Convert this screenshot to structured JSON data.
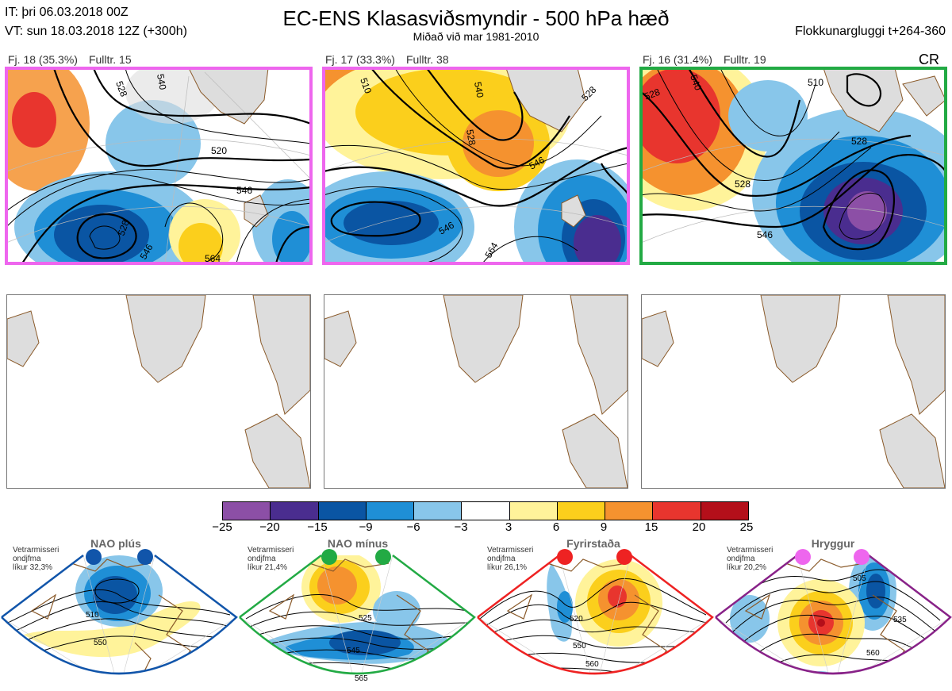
{
  "header": {
    "init_time": "IT: þri 06.03.2018 00Z",
    "valid_time": "VT: sun 18.03.2018 12Z  (+300h)",
    "title": "EC-ENS Klasasviðsmyndir - 500 hPa hæð",
    "subtitle": "Miðað við mar 1981-2010",
    "window": "Flokkunargluggi t+264-360"
  },
  "colors": {
    "magenta_frame": "#ee66ee",
    "green_frame": "#22aa44",
    "blue_frame": "#1155aa",
    "red_frame": "#ee2222",
    "purple_frame": "#882288",
    "land": "#dddddd",
    "coast": "#8a5a2a"
  },
  "panels": [
    {
      "count": "Fj. 18 (35.3%)",
      "rep": "Fulltr. 15",
      "frame_color": "#ee66ee",
      "contour_labels": [
        "528",
        "540",
        "520",
        "546",
        "528",
        "546",
        "564"
      ]
    },
    {
      "count": "Fj. 17 (33.3%)",
      "rep": "Fulltr. 38",
      "frame_color": "#ee66ee",
      "contour_labels": [
        "540",
        "510",
        "528",
        "528",
        "546",
        "546",
        "564"
      ]
    },
    {
      "count": "Fj. 16 (31.4%)",
      "rep": "Fulltr. 19",
      "frame_color": "#22aa44",
      "extra": "CR",
      "contour_labels": [
        "528",
        "540",
        "510",
        "528",
        "528",
        "546"
      ]
    }
  ],
  "colorbar": {
    "ticks": [
      "−25",
      "−20",
      "−15",
      "−9",
      "−6",
      "−3",
      "3",
      "6",
      "9",
      "15",
      "20",
      "25"
    ],
    "colors": [
      "#8c4fa6",
      "#4a2d8f",
      "#0a55a3",
      "#1f8fd6",
      "#88c6ea",
      "#ffffff",
      "#fff39a",
      "#fbcf1c",
      "#f5922f",
      "#e8352e",
      "#b40f1a"
    ]
  },
  "regimes": [
    {
      "name": "NAO plús",
      "note": [
        "Vetrarmisseri",
        "ondjfma",
        "líkur 32,3%"
      ],
      "color": "#1155aa",
      "labels": [
        "510",
        "550"
      ]
    },
    {
      "name": "NAO mínus",
      "note": [
        "Vetrarmisseri",
        "ondjfma",
        "líkur 21,4%"
      ],
      "color": "#22aa44",
      "labels": [
        "525",
        "545",
        "565"
      ]
    },
    {
      "name": "Fyrirstaða",
      "note": [
        "Vetrarmisseri",
        "ondjfma",
        "líkur 26,1%"
      ],
      "color": "#ee2222",
      "labels": [
        "520",
        "550",
        "560"
      ]
    },
    {
      "name": "Hryggur",
      "note": [
        "Vetrarmisseri",
        "ondjfma",
        "líkur 20,2%"
      ],
      "color": "#dd55dd",
      "labels": [
        "505",
        "535",
        "560"
      ]
    }
  ]
}
